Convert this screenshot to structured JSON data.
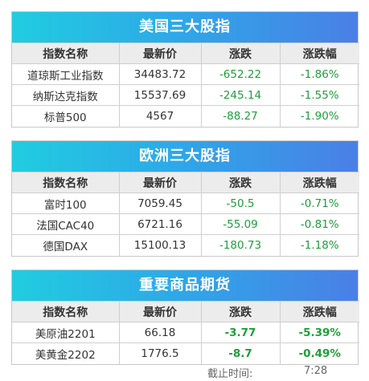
{
  "panels": [
    {
      "title": "美国三大股指",
      "headers": [
        "指数名称",
        "最新价",
        "涨跌",
        "涨跌幅"
      ],
      "rows": [
        [
          "道琼斯工业指数",
          "34483.72",
          "-652.22",
          "-1.86%"
        ],
        [
          "纳斯达克指数",
          "15537.69",
          "-245.14",
          "-1.55%"
        ],
        [
          "标普500",
          "4567",
          "-88.27",
          "-1.90%"
        ]
      ]
    },
    {
      "title": "欧洲三大股指",
      "headers": [
        "指数名称",
        "最新价",
        "涨跌",
        "涨跌幅"
      ],
      "rows": [
        [
          "富时100",
          "7059.45",
          "-50.5",
          "-0.71%"
        ],
        [
          "法国CAC40",
          "6721.16",
          "-55.09",
          "-0.81%"
        ],
        [
          "德国DAX",
          "15100.13",
          "-180.73",
          "-1.18%"
        ]
      ]
    },
    {
      "title": "重要商品期货",
      "headers": [
        "指数名称",
        "最新价",
        "涨跌",
        "涨跌幅"
      ],
      "rows": [
        [
          "美原油2201",
          "66.18",
          "-3.77",
          "-5.39%"
        ],
        [
          "美黄金2202",
          "1776.5",
          "-8.7",
          "-0.49%"
        ]
      ]
    }
  ],
  "footer": {
    "label": "截止时间:",
    "time": "7:28"
  },
  "colors": {
    "negative": "#1e9e3a",
    "header_gradient": [
      "#20cde0",
      "#4a7fe6"
    ]
  }
}
